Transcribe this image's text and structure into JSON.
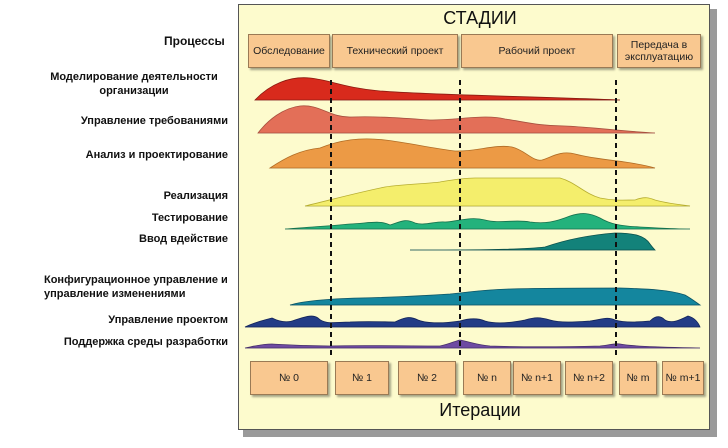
{
  "header": {
    "title": "СТАДИИ",
    "processes_label": "Процессы"
  },
  "footer": {
    "title": "Итерации"
  },
  "stages": [
    {
      "label": "Обследование"
    },
    {
      "label": "Технический проект"
    },
    {
      "label": "Рабочий проект"
    },
    {
      "label": "Передача в эксплуатацию"
    }
  ],
  "iterations": [
    {
      "label": "№ 0"
    },
    {
      "label": "№ 1"
    },
    {
      "label": "№ 2"
    },
    {
      "label": "№ n"
    },
    {
      "label": "№ n+1"
    },
    {
      "label": "№ n+2"
    },
    {
      "label": "№ m"
    },
    {
      "label": "№ m+1"
    }
  ],
  "processes": [
    {
      "label": "Моделирование деятельности организации",
      "color": "#d82a1c"
    },
    {
      "label": "Управление требованиями",
      "color": "#e36f58"
    },
    {
      "label": "Анализ и проектирование",
      "color": "#ec9a45"
    },
    {
      "label": "Реализация",
      "color": "#f4ee6c"
    },
    {
      "label": "Тестирование",
      "color": "#23b27c"
    },
    {
      "label": "Ввод вдействие",
      "color": "#13827a"
    },
    {
      "label": "Конфигурационное управление и управление изменениями",
      "color": "#14869e"
    },
    {
      "label": "Управление проектом",
      "color": "#233c86"
    },
    {
      "label": "Поддержка среды разработки",
      "color": "#6e4aa2"
    }
  ]
}
